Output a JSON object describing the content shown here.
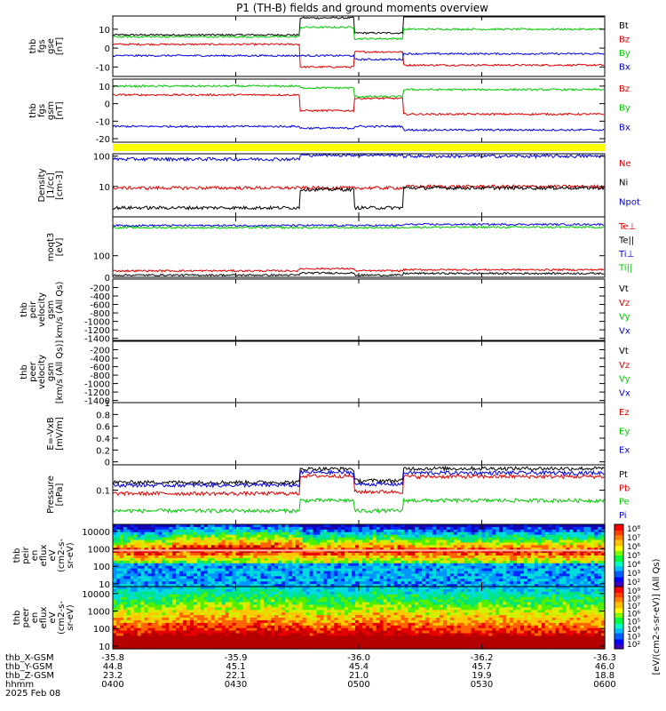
{
  "title": "P1 (TH-B) fields and ground moments overview",
  "colors": {
    "black": "#000000",
    "red": "#e00000",
    "green": "#00c800",
    "blue": "#0000e0",
    "yellow": "#ffff00"
  },
  "chart_data": [
    {
      "type": "line",
      "id": "fgs_gse",
      "ylabel": [
        "thb",
        "fgs",
        "gse",
        "[nT]"
      ],
      "ylim": [
        -15,
        17
      ],
      "yticks": [
        10,
        0,
        -10
      ],
      "series": [
        {
          "name": "Bt",
          "color": "#000000",
          "segments": [
            [
              0.115,
              7
            ],
            [
              0.38,
              16
            ],
            [
              0.49,
              8
            ],
            [
              0.59,
              17
            ]
          ]
        },
        {
          "name": "Bz",
          "color": "#e00000",
          "segments": [
            [
              0.115,
              2
            ],
            [
              0.38,
              -10
            ],
            [
              0.49,
              -2
            ],
            [
              0.59,
              -9
            ]
          ]
        },
        {
          "name": "By",
          "color": "#00c800",
          "segments": [
            [
              0.115,
              6
            ],
            [
              0.38,
              11
            ],
            [
              0.49,
              5
            ],
            [
              0.59,
              10
            ]
          ]
        },
        {
          "name": "Bx",
          "color": "#0000e0",
          "segments": [
            [
              0.115,
              -4
            ],
            [
              0.38,
              -4
            ],
            [
              0.49,
              -6
            ],
            [
              0.59,
              -3
            ]
          ]
        }
      ]
    },
    {
      "type": "line",
      "id": "fgs_gsm",
      "ylabel": [
        "thb",
        "fgs",
        "gsm",
        "[nT]"
      ],
      "ylim": [
        -22,
        14
      ],
      "yticks": [
        10,
        0,
        -10,
        -20
      ],
      "series": [
        {
          "name": "Bz",
          "color": "#e00000",
          "segments": [
            [
              0.115,
              5
            ],
            [
              0.38,
              -4
            ],
            [
              0.49,
              3
            ],
            [
              0.59,
              -6
            ]
          ]
        },
        {
          "name": "By",
          "color": "#00c800",
          "segments": [
            [
              0.115,
              10
            ],
            [
              0.38,
              9
            ],
            [
              0.49,
              4
            ],
            [
              0.59,
              8
            ]
          ]
        },
        {
          "name": "Bx",
          "color": "#0000e0",
          "segments": [
            [
              0.115,
              -13
            ],
            [
              0.38,
              -14
            ],
            [
              0.49,
              -13
            ],
            [
              0.59,
              -15
            ]
          ]
        }
      ]
    },
    {
      "type": "line",
      "id": "density",
      "ylabel": [
        "Density",
        "[1/cc]",
        "[cm-3]"
      ],
      "ylim": [
        1,
        120
      ],
      "yscale": "log",
      "yticks": [
        100,
        10
      ],
      "series": [
        {
          "name": "Ne",
          "color": "#e00000",
          "segments": [
            [
              0.115,
              9
            ],
            [
              0.59,
              10
            ]
          ]
        },
        {
          "name": "Ni",
          "color": "#000000",
          "segments": [
            [
              0.115,
              2
            ],
            [
              0.38,
              8
            ],
            [
              0.49,
              2
            ],
            [
              0.59,
              9
            ]
          ]
        },
        {
          "name": "Npot",
          "color": "#0000e0",
          "segments": [
            [
              0.115,
              80
            ],
            [
              0.38,
              110
            ],
            [
              0.59,
              100
            ]
          ]
        }
      ]
    },
    {
      "type": "line",
      "id": "temperature",
      "ylabel": [
        "moqt3",
        "[eV]"
      ],
      "ylim": [
        0,
        280
      ],
      "yticks": [
        100,
        0
      ],
      "series": [
        {
          "name": "Te⊥",
          "color": "#e00000",
          "segments": [
            [
              0.115,
              30
            ],
            [
              0.38,
              40
            ],
            [
              0.49,
              30
            ],
            [
              0.59,
              35
            ]
          ]
        },
        {
          "name": "Te||",
          "color": "#000000",
          "segments": [
            [
              0.115,
              10
            ],
            [
              0.38,
              20
            ],
            [
              0.49,
              10
            ],
            [
              0.59,
              18
            ]
          ]
        },
        {
          "name": "Ti⊥",
          "color": "#0000e0",
          "segments": [
            [
              0.115,
              240
            ],
            [
              0.59,
              245
            ]
          ]
        },
        {
          "name": "Ti||",
          "color": "#00c800",
          "segments": [
            [
              0.115,
              230
            ],
            [
              0.59,
              232
            ]
          ]
        }
      ]
    },
    {
      "type": "line",
      "id": "peir_velocity",
      "ylabel": [
        "thb",
        "peir",
        "velocity",
        "gsm",
        "km/s (All Qs)"
      ],
      "ylim": [
        -1450,
        0
      ],
      "yticks": [
        -200,
        -400,
        -600,
        -800,
        -1000,
        -1200,
        -1400
      ],
      "series": [
        {
          "name": "Vt",
          "color": "#000000",
          "segments": []
        },
        {
          "name": "Vz",
          "color": "#e00000",
          "segments": []
        },
        {
          "name": "Vy",
          "color": "#00c800",
          "segments": []
        },
        {
          "name": "Vx",
          "color": "#0000e0",
          "segments": []
        }
      ]
    },
    {
      "type": "line",
      "id": "peer_velocity",
      "ylabel": [
        "thb",
        "peer",
        "velocity",
        "gsm",
        "[km/s (All Qs)]"
      ],
      "ylim": [
        -1450,
        0
      ],
      "yticks": [
        -200,
        -400,
        -600,
        -800,
        -1000,
        -1200,
        -1400
      ],
      "series": [
        {
          "name": "Vt",
          "color": "#000000",
          "segments": []
        },
        {
          "name": "Vz",
          "color": "#e00000",
          "segments": []
        },
        {
          "name": "Vy",
          "color": "#00c800",
          "segments": []
        },
        {
          "name": "Vx",
          "color": "#0000e0",
          "segments": []
        }
      ]
    },
    {
      "type": "line",
      "id": "efield",
      "ylabel": [
        "E=-VxB",
        "[mV/m]"
      ],
      "ylim": [
        -0.05,
        1.0
      ],
      "yticks": [
        1.0,
        0.8,
        0.6,
        0.4,
        0.2,
        0.0
      ],
      "series": [
        {
          "name": "Ez",
          "color": "#e00000",
          "segments": []
        },
        {
          "name": "Ey",
          "color": "#00c800",
          "segments": []
        },
        {
          "name": "Ex",
          "color": "#0000e0",
          "segments": []
        }
      ]
    },
    {
      "type": "line",
      "id": "pressure",
      "ylabel": [
        "Pressure",
        "[nPa]"
      ],
      "ylim": [
        0.01,
        0.55
      ],
      "yscale": "log",
      "yticks": [
        0.1
      ],
      "series": [
        {
          "name": "Pt",
          "color": "#000000",
          "segments": [
            [
              0.115,
              0.17
            ],
            [
              0.38,
              0.42
            ],
            [
              0.49,
              0.19
            ],
            [
              0.59,
              0.43
            ]
          ]
        },
        {
          "name": "Pb",
          "color": "#e00000",
          "segments": [
            [
              0.115,
              0.08
            ],
            [
              0.38,
              0.26
            ],
            [
              0.49,
              0.09
            ],
            [
              0.59,
              0.25
            ]
          ]
        },
        {
          "name": "Pe",
          "color": "#00c800",
          "segments": [
            [
              0.115,
              0.025
            ],
            [
              0.38,
              0.05
            ],
            [
              0.49,
              0.025
            ],
            [
              0.59,
              0.05
            ]
          ]
        },
        {
          "name": "Pi",
          "color": "#0000e0",
          "segments": [
            [
              0.115,
              0.14
            ],
            [
              0.38,
              0.33
            ],
            [
              0.49,
              0.15
            ],
            [
              0.59,
              0.32
            ]
          ]
        }
      ]
    },
    {
      "type": "heatmap",
      "id": "peir_spec",
      "ylabel": [
        "thb",
        "peir",
        "en",
        "eflux",
        "eV",
        "(cm2-s-",
        "sr-eV)"
      ],
      "yscale": "log",
      "ylim": [
        7,
        25000
      ],
      "yticks": [
        10000,
        1000,
        100,
        10
      ],
      "colorbar_ticks": [
        "10⁸",
        "10⁷",
        "10⁶",
        "10⁵",
        "10⁴",
        "10³",
        "10²"
      ]
    },
    {
      "type": "heatmap",
      "id": "peer_spec",
      "ylabel": [
        "thb",
        "peer",
        "en",
        "eflux",
        "eV",
        "(cm2-s-",
        "sr-eV)"
      ],
      "yscale": "log",
      "ylim": [
        7,
        25000
      ],
      "yticks": [
        10000,
        1000,
        100,
        10
      ],
      "colorbar_ticks": [
        "10⁹",
        "10⁸",
        "10⁷",
        "10⁶",
        "10⁵",
        "10⁴",
        "10³",
        "10²"
      ]
    }
  ],
  "colorbar_label": "[eV/(cm2-s-sr-eV)] (All Qs)",
  "x_axis": {
    "ticks": [
      "0400",
      "0430",
      "0500",
      "0530",
      "0600"
    ],
    "rows": [
      {
        "label": "thb_X-GSM",
        "values": [
          "-35.8",
          "-35.9",
          "-36.0",
          "-36.2",
          "-36.3"
        ]
      },
      {
        "label": "thb_Y-GSM",
        "values": [
          "44.8",
          "45.1",
          "45.4",
          "45.7",
          "46.0"
        ]
      },
      {
        "label": "thb_Z-GSM",
        "values": [
          "23.2",
          "22.1",
          "21.0",
          "19.9",
          "18.8"
        ]
      },
      {
        "label": "hhmm",
        "values": [
          "0400",
          "0430",
          "0500",
          "0530",
          "0600"
        ]
      }
    ],
    "date": "2025 Feb 08"
  }
}
